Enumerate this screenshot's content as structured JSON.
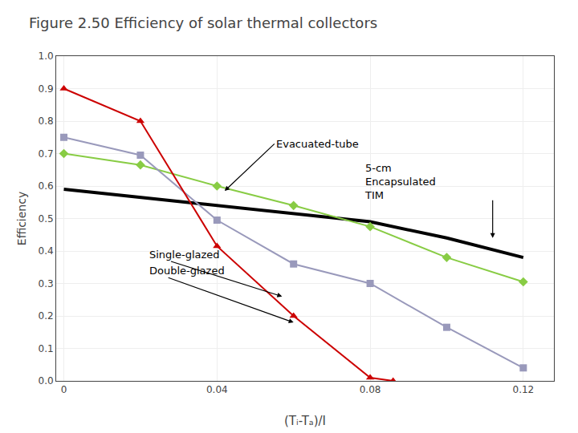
{
  "chart_data": {
    "type": "line",
    "title": "Figure 2.50 Efficiency of solar thermal collectors",
    "x_label": "(Tᵢ-Tₐ)/I",
    "y_label": "Efficiency",
    "xlim": [
      -0.002,
      0.128
    ],
    "ylim": [
      0.0,
      1.0
    ],
    "xticks": [
      0,
      0.04,
      0.08,
      0.12
    ],
    "yticks": [
      {
        "value": 0.0,
        "label": "0.0"
      },
      0.1,
      0.2,
      0.3,
      0.4,
      0.5,
      0.6,
      0.7,
      0.8,
      0.9,
      {
        "value": 1.0,
        "label": "1.0"
      }
    ],
    "grid": true,
    "series": [
      {
        "color": "#000000",
        "marker": "none",
        "x": [
          0,
          0.02,
          0.04,
          0.06,
          0.08,
          0.1,
          0.12
        ],
        "values": [
          0.59,
          0.565,
          0.54,
          0.515,
          0.49,
          0.44,
          0.38
        ]
      },
      {
        "color": "#88CC44",
        "marker": "diamond",
        "x": [
          0,
          0.02,
          0.04,
          0.06,
          0.08,
          0.1,
          0.12
        ],
        "values": [
          0.7,
          0.665,
          0.6,
          0.54,
          0.475,
          0.38,
          0.305
        ]
      },
      {
        "color": "#9999BB",
        "marker": "square",
        "x": [
          0,
          0.02,
          0.04,
          0.06,
          0.08,
          0.1,
          0.12
        ],
        "values": [
          0.75,
          0.695,
          0.495,
          0.36,
          0.3,
          0.165,
          0.04
        ]
      },
      {
        "color": "#CC0000",
        "marker": "triangle-up",
        "x": [
          0,
          0.02,
          0.04,
          0.06,
          0.08,
          0.086
        ],
        "values": [
          0.9,
          0.8,
          0.415,
          0.2,
          0.01,
          0.0
        ]
      }
    ],
    "annotations": [
      {
        "text": "Evacuated-tube",
        "text_x": 0.055,
        "text_y": 0.73,
        "arrow_to": [
          0.042,
          0.585
        ]
      },
      {
        "text": "5-cm\nEncapsulated\nTIM",
        "text_x": 0.078,
        "text_y": 0.68,
        "arrow_from": [
          0.112,
          0.56
        ],
        "arrow_to": [
          0.112,
          0.44
        ]
      },
      {
        "text": "Single-glazed",
        "text_x": 0.022,
        "text_y": 0.39,
        "arrow_to": [
          0.057,
          0.26
        ]
      },
      {
        "text": "Double-glazed",
        "text_x": 0.022,
        "text_y": 0.34,
        "arrow_to": [
          0.06,
          0.18
        ]
      }
    ]
  }
}
